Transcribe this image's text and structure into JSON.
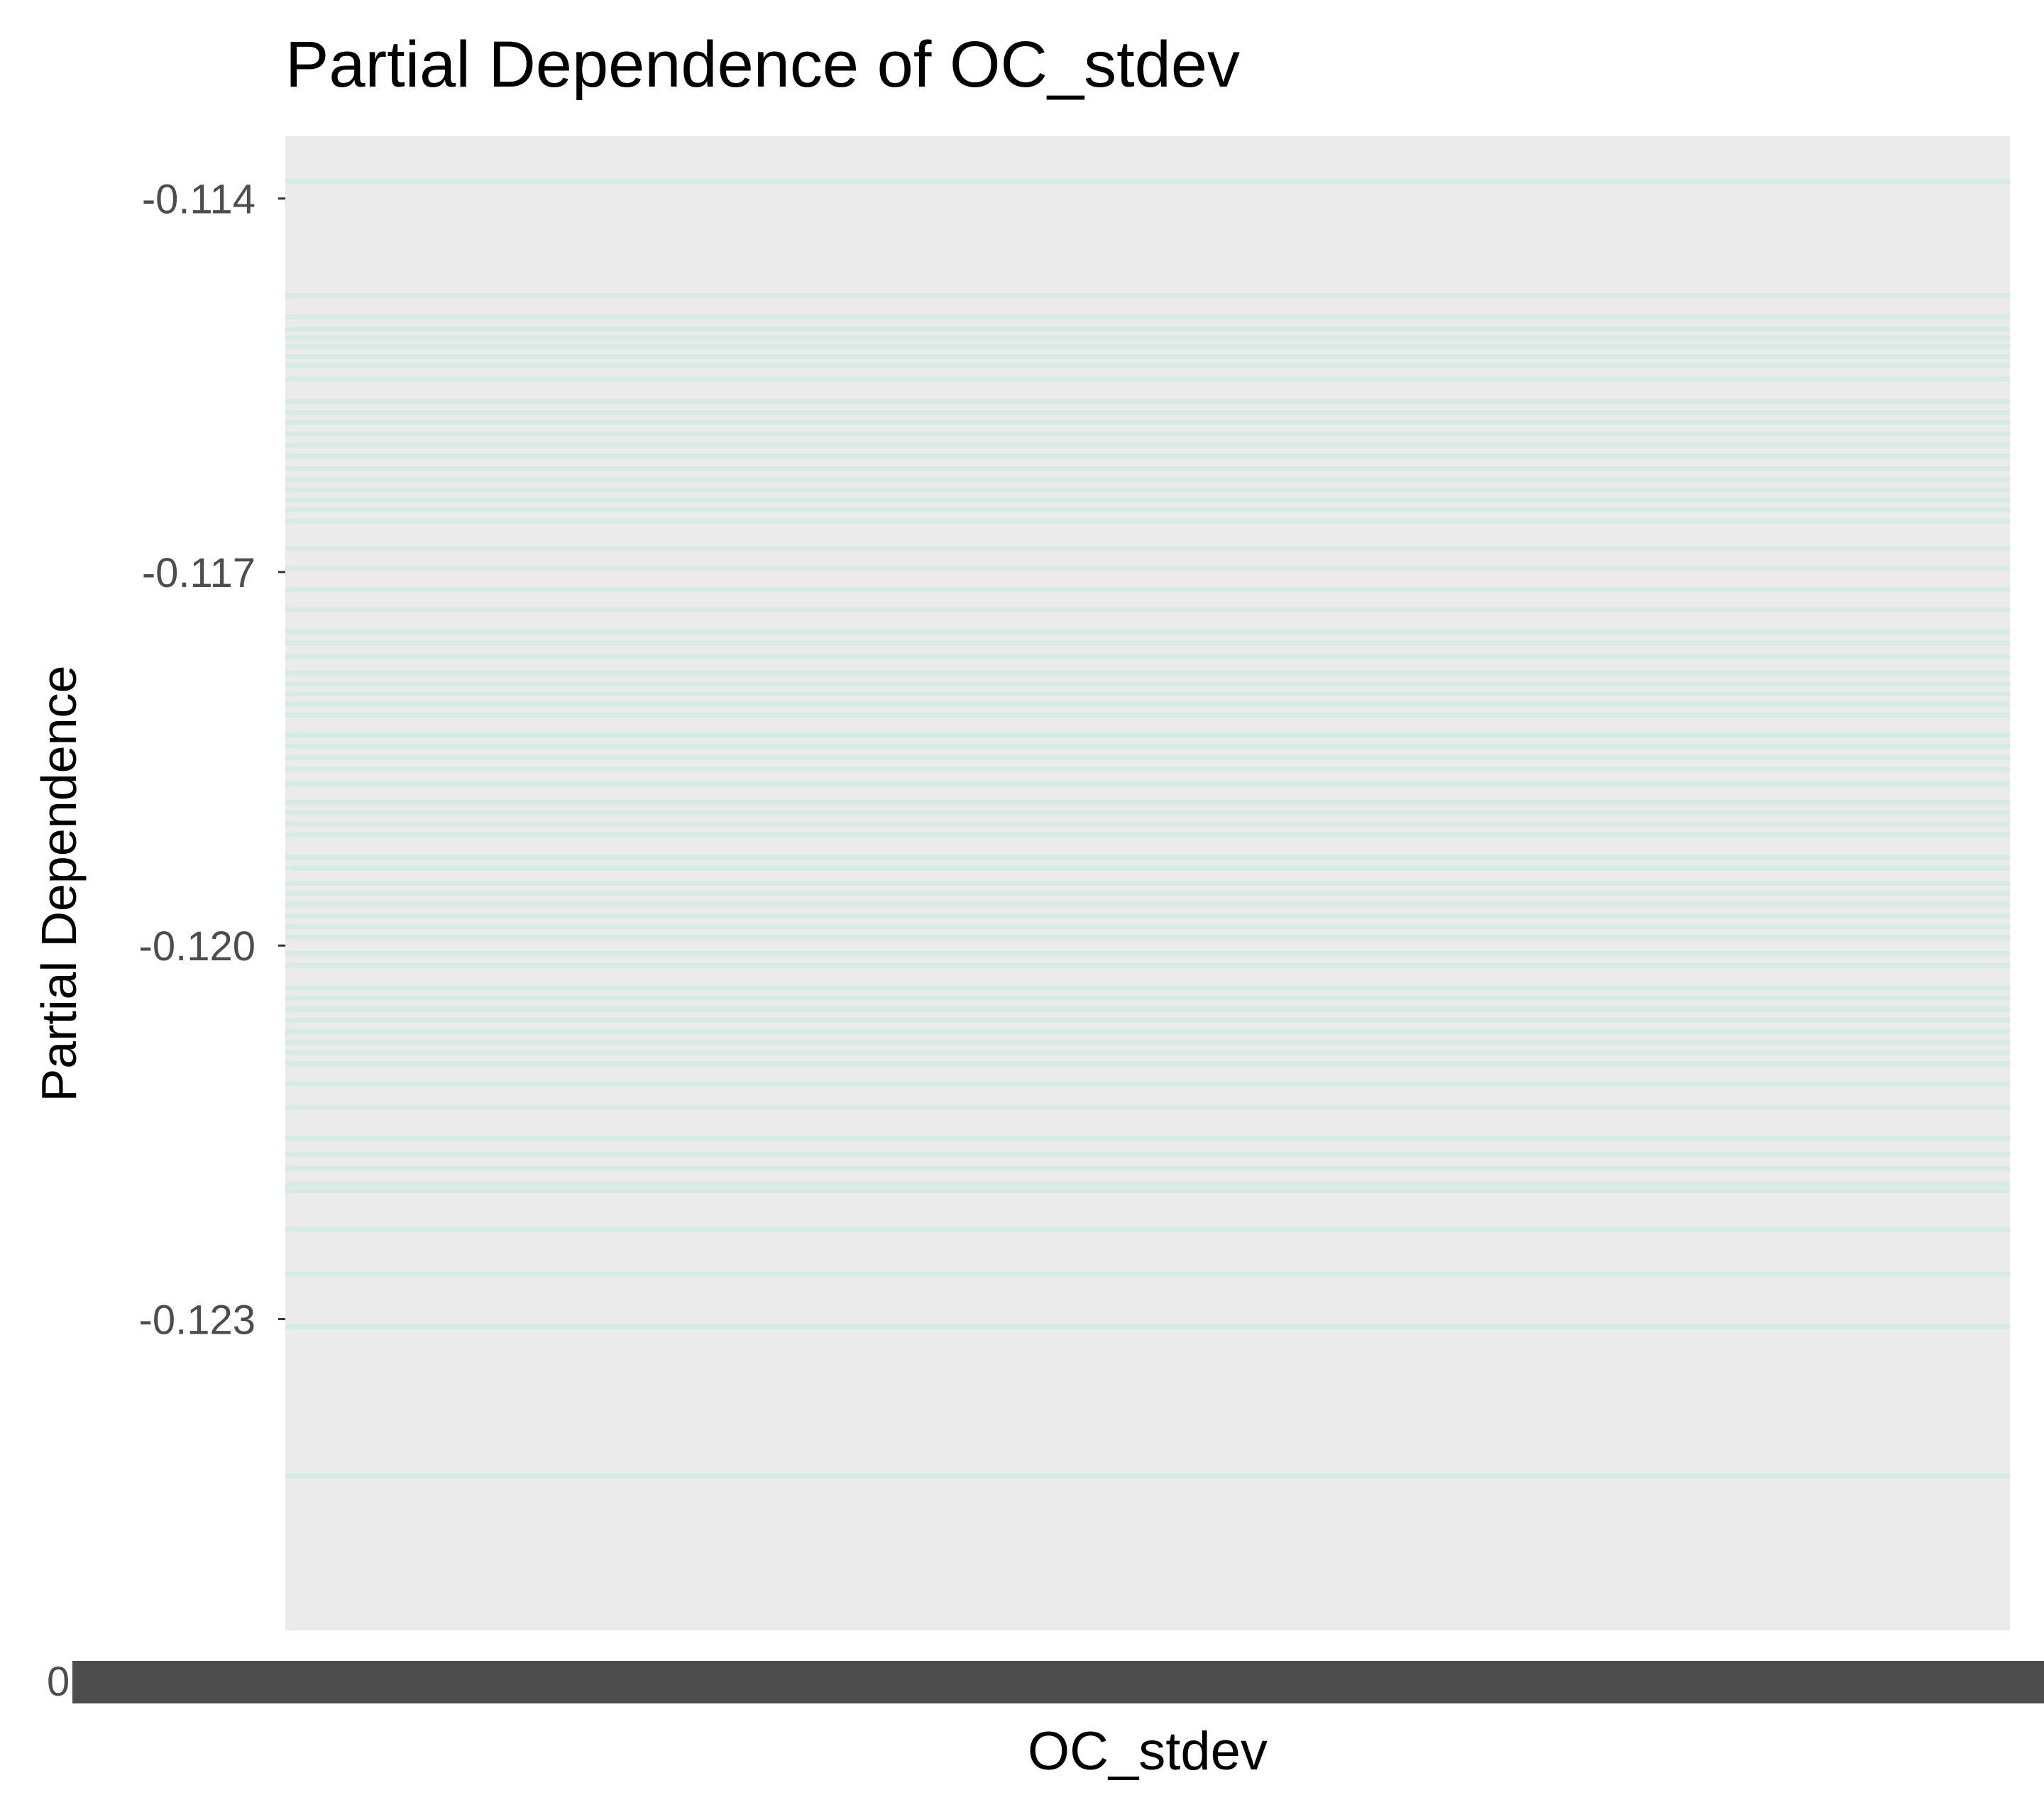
{
  "chart_data": {
    "type": "line",
    "title": "Partial Dependence of OC_stdev",
    "xlabel": "OC_stdev",
    "ylabel": "Partial Dependence",
    "yticks": [
      -0.114,
      -0.117,
      -0.12,
      -0.123
    ],
    "ytick_labels": [
      "-0.114",
      "-0.117",
      "-0.120",
      "-0.123"
    ],
    "ylim": [
      -0.1255,
      -0.1135
    ],
    "xtick_first_label": "0",
    "xtick_band_note": "overlapping x tick labels",
    "line_color": "#b2f0dc",
    "panel_color": "#ebebeb",
    "grid": false,
    "series_values": [
      -0.11386,
      -0.11478,
      -0.11495,
      -0.11505,
      -0.11512,
      -0.11519,
      -0.11527,
      -0.11534,
      -0.11545,
      -0.11563,
      -0.11572,
      -0.1158,
      -0.11589,
      -0.11598,
      -0.11607,
      -0.11617,
      -0.11626,
      -0.11634,
      -0.11642,
      -0.1165,
      -0.11659,
      -0.11681,
      -0.11697,
      -0.11714,
      -0.1173,
      -0.11748,
      -0.11757,
      -0.11768,
      -0.11781,
      -0.1179,
      -0.11798,
      -0.11806,
      -0.11815,
      -0.11831,
      -0.1184,
      -0.11849,
      -0.11858,
      -0.1187,
      -0.11885,
      -0.11893,
      -0.11902,
      -0.11911,
      -0.11929,
      -0.11938,
      -0.1195,
      -0.11958,
      -0.11967,
      -0.11976,
      -0.11985,
      -0.11993,
      -0.12006,
      -0.12016,
      -0.12034,
      -0.12042,
      -0.12051,
      -0.1206,
      -0.12069,
      -0.12078,
      -0.12086,
      -0.12095,
      -0.12111,
      -0.1213,
      -0.12155,
      -0.12168,
      -0.12179,
      -0.12192,
      -0.12197,
      -0.12228,
      -0.12264,
      -0.12306,
      -0.12426
    ]
  }
}
